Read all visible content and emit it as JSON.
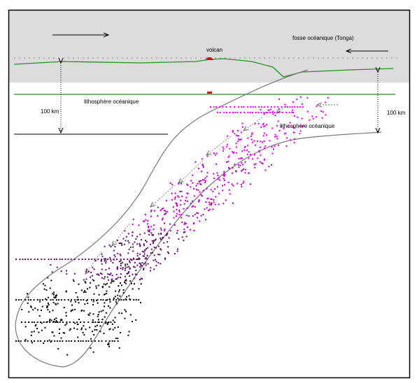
{
  "labels": {
    "volcano": "volcan",
    "trench": "fosse océanique (Tonga)",
    "lithosphere_left": "lithosphère océanique",
    "lithosphere_right": "lithosphère océanique",
    "depth_left": "100 km",
    "depth_right": "100 km"
  }
}
